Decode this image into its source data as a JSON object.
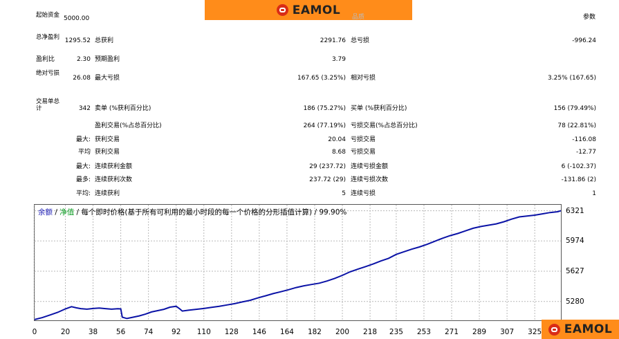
{
  "banner": {
    "logo_text": "EAMOL"
  },
  "header": {
    "right_label": "参数",
    "col3_label": "品质"
  },
  "summary": {
    "initial_deposit": {
      "label": "起始资金",
      "value": "5000.00"
    },
    "net_profit": {
      "label": "总净盈利",
      "value": "1295.52"
    },
    "gross_profit": {
      "label": "总获利",
      "value": "2291.76"
    },
    "gross_loss": {
      "label": "总亏损",
      "value": "-996.24"
    },
    "profit_factor": {
      "label": "盈利比",
      "value": "2.30"
    },
    "expected_payoff": {
      "label": "预期盈利",
      "value": "3.79"
    },
    "absolute_drawdown": {
      "label": "绝对亏损",
      "value": "26.08"
    },
    "max_drawdown": {
      "label": "最大亏损",
      "value": "167.65 (3.25%)"
    },
    "relative_drawdown": {
      "label": "相对亏损",
      "value": "3.25% (167.65)"
    }
  },
  "trades": {
    "total": {
      "label": "交易单总计",
      "value": "342"
    },
    "short": {
      "label": "卖单 (%获利百分比)",
      "value": "186 (75.27%)"
    },
    "long": {
      "label": "买单 (%获利百分比)",
      "value": "156 (79.49%)"
    },
    "profit_trades": {
      "label": "盈利交易(%占总百分比)",
      "value": "264 (77.19%)"
    },
    "loss_trades": {
      "label": "亏损交易(%占总百分比)",
      "value": "78 (22.81%)"
    },
    "largest": {
      "prefix": "最大:",
      "profit_label": "获利交易",
      "profit_value": "20.04",
      "loss_label": "亏损交易",
      "loss_value": "-116.08"
    },
    "average": {
      "prefix": "平均",
      "profit_label": "获利交易",
      "profit_value": "8.68",
      "loss_label": "亏损交易",
      "loss_value": "-12.77"
    },
    "max_consec_amount": {
      "prefix": "最大:",
      "profit_label": "连续获利金额",
      "profit_value": "29 (237.72)",
      "loss_label": "连续亏损金额",
      "loss_value": "6 (-102.37)"
    },
    "max_consec_count": {
      "prefix": "最多:",
      "profit_label": "连续获利次数",
      "profit_value": "237.72 (29)",
      "loss_label": "连续亏损次数",
      "loss_value": "-131.86 (2)"
    },
    "avg_consec": {
      "prefix": "平均:",
      "profit_label": "连续获利",
      "profit_value": "5",
      "loss_label": "连续亏损",
      "loss_value": "1"
    }
  },
  "chart_header": {
    "balance": "余额",
    "sep1": " / ",
    "equity": "净值",
    "description": " / 每个即时价格(基于所有可利用的最小时段的每一个价格的分形插值计算) / 99.90%"
  },
  "colors": {
    "balance": "#1a1ab4",
    "equity": "#0a9a20",
    "line": "#0a12a6",
    "brand_orange": "#ff8c1a",
    "brand_red": "#d92c16"
  },
  "chart_data": {
    "type": "line",
    "title": "",
    "xlabel": "",
    "ylabel": "",
    "x_ticks": [
      0,
      20,
      38,
      56,
      74,
      92,
      110,
      128,
      146,
      164,
      182,
      200,
      218,
      235,
      253,
      271,
      289,
      307,
      325
    ],
    "y_ticks": [
      5280,
      5627,
      5974,
      6321
    ],
    "xlim": [
      0,
      342
    ],
    "ylim": [
      5064,
      6389
    ],
    "series": [
      {
        "x": [
          0,
          5,
          10,
          15,
          20,
          24,
          27,
          30,
          34,
          38,
          42,
          46,
          50,
          54,
          56,
          57,
          60,
          64,
          68,
          72,
          76,
          80,
          84,
          88,
          92,
          94,
          96,
          100,
          105,
          110,
          115,
          120,
          125,
          130,
          135,
          140,
          145,
          150,
          155,
          160,
          165,
          170,
          175,
          180,
          185,
          190,
          195,
          200,
          205,
          210,
          215,
          220,
          225,
          230,
          235,
          240,
          245,
          250,
          255,
          260,
          265,
          270,
          275,
          280,
          285,
          290,
          295,
          300,
          305,
          310,
          315,
          320,
          325,
          330,
          335,
          340,
          342
        ],
        "y": [
          5073,
          5095,
          5125,
          5155,
          5195,
          5220,
          5208,
          5198,
          5192,
          5200,
          5205,
          5198,
          5192,
          5197,
          5195,
          5100,
          5085,
          5100,
          5115,
          5135,
          5160,
          5175,
          5190,
          5215,
          5225,
          5200,
          5170,
          5180,
          5190,
          5200,
          5213,
          5225,
          5240,
          5255,
          5275,
          5293,
          5320,
          5345,
          5370,
          5392,
          5415,
          5440,
          5460,
          5475,
          5490,
          5515,
          5545,
          5580,
          5620,
          5650,
          5680,
          5710,
          5745,
          5775,
          5820,
          5850,
          5880,
          5905,
          5935,
          5970,
          6005,
          6035,
          6060,
          6090,
          6120,
          6140,
          6155,
          6170,
          6195,
          6225,
          6250,
          6260,
          6270,
          6285,
          6300,
          6310,
          6321
        ]
      }
    ]
  }
}
